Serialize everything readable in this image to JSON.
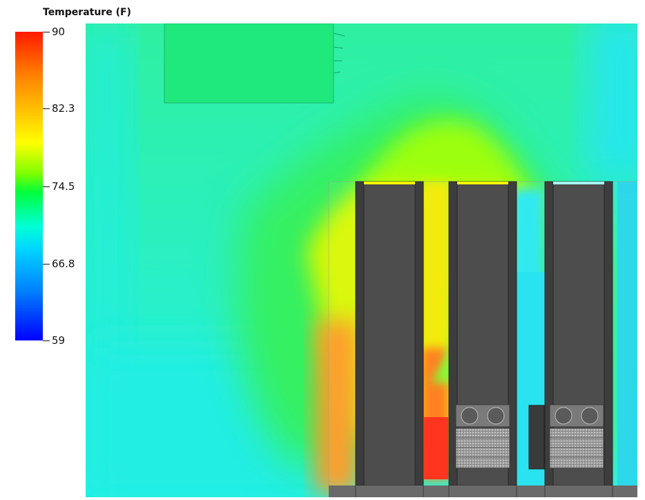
{
  "legend": {
    "title": "Temperature (F)",
    "ticks": [
      "90",
      "82.3",
      "74.5",
      "66.8",
      "59"
    ],
    "min": 59,
    "max": 90,
    "colormap": [
      "#0000ff",
      "#00d8ff",
      "#00ffd5",
      "#00ff3c",
      "#7cff00",
      "#ffff00",
      "#ff8000",
      "#ff1a00"
    ]
  },
  "colors": {
    "background_field": "#33f0b4",
    "rack": "#4d4d4d",
    "rack_frame": "#2e2e2e",
    "floor_base": "#6a6a6a",
    "crac_unit": "#1fe07a"
  }
}
